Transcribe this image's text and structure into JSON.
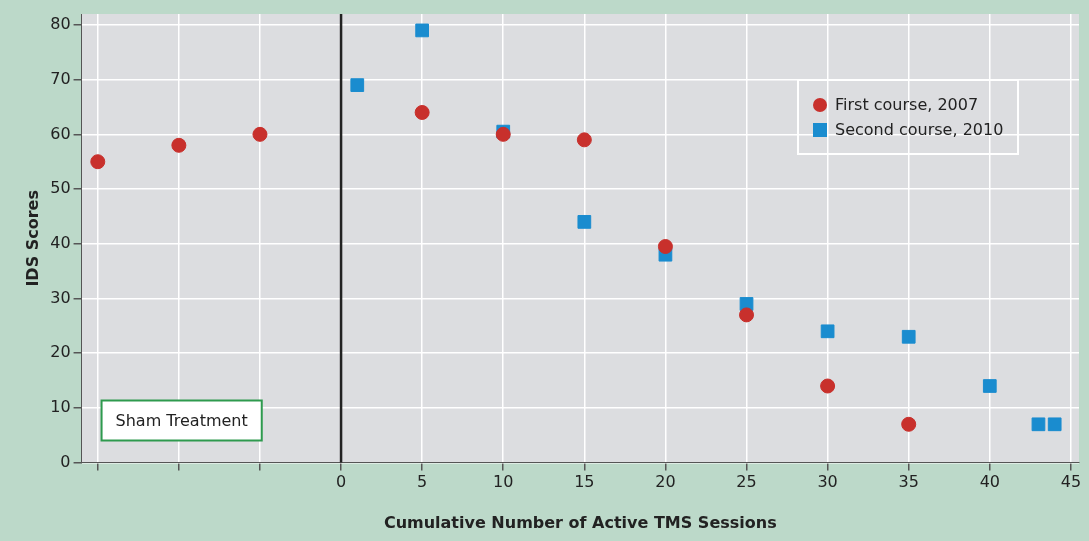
{
  "chart_data": {
    "type": "scatter",
    "xlabel": "Cumulative Number of Active TMS Sessions",
    "ylabel": "IDS Scores",
    "series": [
      {
        "name": "First course, 2007",
        "color": "#c8302c",
        "marker": "circle",
        "x": [
          -15,
          -10,
          -5,
          5,
          10,
          15,
          20,
          25,
          30,
          35
        ],
        "values": [
          55,
          58,
          60,
          64,
          60,
          59,
          39.5,
          27,
          14,
          7
        ]
      },
      {
        "name": "Second course, 2010",
        "color": "#1a8ccf",
        "marker": "square",
        "x": [
          1,
          5,
          10,
          15,
          20,
          25,
          30,
          35,
          40,
          43,
          44
        ],
        "values": [
          69,
          79,
          60.5,
          44,
          38,
          29,
          24,
          23,
          14,
          7,
          7
        ]
      }
    ],
    "xlim": [
      -16,
      45.5
    ],
    "xticks": [
      {
        "value": -15,
        "label": null
      },
      {
        "value": -10,
        "label": null
      },
      {
        "value": -5,
        "label": null
      },
      0,
      5,
      10,
      15,
      20,
      25,
      30,
      35,
      40,
      45
    ],
    "ylim": [
      0,
      82
    ],
    "yticks": [
      0,
      10,
      20,
      30,
      40,
      50,
      60,
      70,
      80
    ],
    "ref_lines": [
      {
        "axis": "x",
        "value": 0,
        "color": "#222222"
      }
    ],
    "annotations": [
      "Sham Treatment"
    ],
    "grid": true,
    "legend": "top right"
  }
}
